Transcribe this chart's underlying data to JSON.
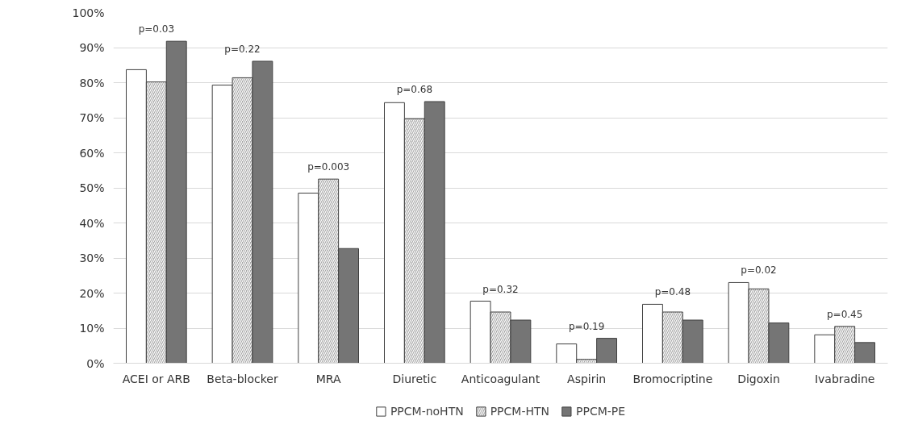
{
  "chart_data": {
    "type": "bar",
    "categories": [
      "ACEI or ARB",
      "Beta-blocker",
      "MRA",
      "Diuretic",
      "Anticoagulant",
      "Aspirin",
      "Bromocriptine",
      "Digoxin",
      "Ivabradine"
    ],
    "series": [
      {
        "name": "PPCM-noHTN",
        "color": "#ffffff",
        "values": [
          83.7,
          79.3,
          48.5,
          74.3,
          17.7,
          5.5,
          16.8,
          23.0,
          8.1
        ]
      },
      {
        "name": "PPCM-HTN",
        "color": "#a6a6a6",
        "values": [
          80.2,
          81.4,
          52.5,
          69.7,
          14.6,
          1.1,
          14.6,
          21.2,
          10.5
        ]
      },
      {
        "name": "PPCM-PE",
        "color": "#757575",
        "values": [
          91.8,
          86.1,
          32.7,
          74.6,
          12.3,
          7.1,
          12.3,
          11.5,
          5.9
        ]
      }
    ],
    "ylim": [
      0,
      100
    ],
    "yticks": [
      {
        "value": 0,
        "label": "0%"
      },
      {
        "value": 10,
        "label": "10%"
      },
      {
        "value": 20,
        "label": "20%"
      },
      {
        "value": 30,
        "label": "30%"
      },
      {
        "value": 40,
        "label": "40%"
      },
      {
        "value": 50,
        "label": "50%"
      },
      {
        "value": 60,
        "label": "60%"
      },
      {
        "value": 70,
        "label": "70%"
      },
      {
        "value": 80,
        "label": "80%"
      },
      {
        "value": 90,
        "label": "90%"
      },
      {
        "value": 100,
        "label": "100%"
      }
    ],
    "grid": "y",
    "legend": "bottom",
    "annotations": [
      "p=0.03",
      "p=0.22",
      "p=0.003",
      "p=0.68",
      "p=0.32",
      "p=0.19",
      "p=0.48",
      "p=0.02",
      "p=0.45"
    ]
  }
}
